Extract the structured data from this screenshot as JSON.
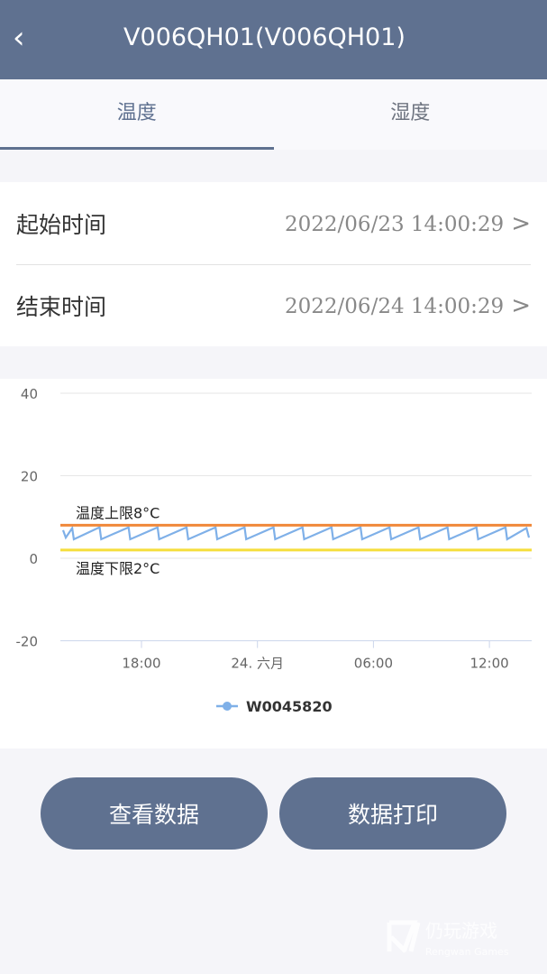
{
  "header": {
    "title": "V006QH01(V006QH01)",
    "back_icon": "chevron-left-icon"
  },
  "tabs": [
    {
      "label": "温度",
      "active": true
    },
    {
      "label": "湿度",
      "active": false
    }
  ],
  "time_range": {
    "start": {
      "label": "起始时间",
      "value": "2022/06/23 14:00:29"
    },
    "end": {
      "label": "结束时间",
      "value": "2022/06/24 14:00:29"
    }
  },
  "chart_data": {
    "type": "line",
    "ylim": [
      -20,
      40
    ],
    "yticks": [
      "40",
      "20",
      "0",
      "-20"
    ],
    "xticks": [
      {
        "label": "18:00",
        "t": "06-23 18:00"
      },
      {
        "label": "24. 六月",
        "t": "06-24 00:00"
      },
      {
        "label": "06:00",
        "t": "06-24 06:00"
      },
      {
        "label": "12:00",
        "t": "06-24 12:00"
      }
    ],
    "grid": true,
    "legend_position": "bottom",
    "plotlines": [
      {
        "label": "温度上限8°C",
        "value": 8,
        "color": "#f0883a"
      },
      {
        "label": "温度下限2°C",
        "value": 2,
        "color": "#f5de3c"
      }
    ],
    "series": [
      {
        "name": "W0045820",
        "color": "#7fb0e8",
        "points": [
          [
            "06-23 13:50",
            6.8
          ],
          [
            "06-23 14:05",
            5.0
          ],
          [
            "06-23 14:25",
            7.3
          ],
          [
            "06-23 14:30",
            4.6
          ],
          [
            "06-23 15:50",
            7.5
          ],
          [
            "06-23 15:55",
            4.6
          ],
          [
            "06-23 17:20",
            7.5
          ],
          [
            "06-23 17:25",
            4.6
          ],
          [
            "06-23 18:50",
            7.5
          ],
          [
            "06-23 18:55",
            4.6
          ],
          [
            "06-23 20:20",
            7.5
          ],
          [
            "06-23 20:25",
            4.6
          ],
          [
            "06-23 21:50",
            7.5
          ],
          [
            "06-23 21:55",
            4.6
          ],
          [
            "06-23 23:20",
            7.5
          ],
          [
            "06-23 23:25",
            4.6
          ],
          [
            "06-24 00:50",
            7.5
          ],
          [
            "06-24 00:55",
            4.6
          ],
          [
            "06-24 02:20",
            7.5
          ],
          [
            "06-24 02:25",
            4.6
          ],
          [
            "06-24 03:50",
            7.5
          ],
          [
            "06-24 03:55",
            4.6
          ],
          [
            "06-24 05:20",
            7.5
          ],
          [
            "06-24 05:25",
            4.6
          ],
          [
            "06-24 06:50",
            7.5
          ],
          [
            "06-24 06:55",
            4.6
          ],
          [
            "06-24 08:20",
            7.5
          ],
          [
            "06-24 08:25",
            4.6
          ],
          [
            "06-24 09:50",
            7.5
          ],
          [
            "06-24 09:55",
            4.6
          ],
          [
            "06-24 11:20",
            7.5
          ],
          [
            "06-24 11:25",
            4.6
          ],
          [
            "06-24 12:50",
            7.5
          ],
          [
            "06-24 12:55",
            4.6
          ],
          [
            "06-24 13:55",
            7.3
          ],
          [
            "06-24 14:05",
            5.0
          ]
        ]
      }
    ]
  },
  "buttons": {
    "view_data": "查看数据",
    "print_data": "数据打印"
  },
  "watermark": {
    "cn": "仍玩游戏",
    "en": "Rengwan Games"
  }
}
